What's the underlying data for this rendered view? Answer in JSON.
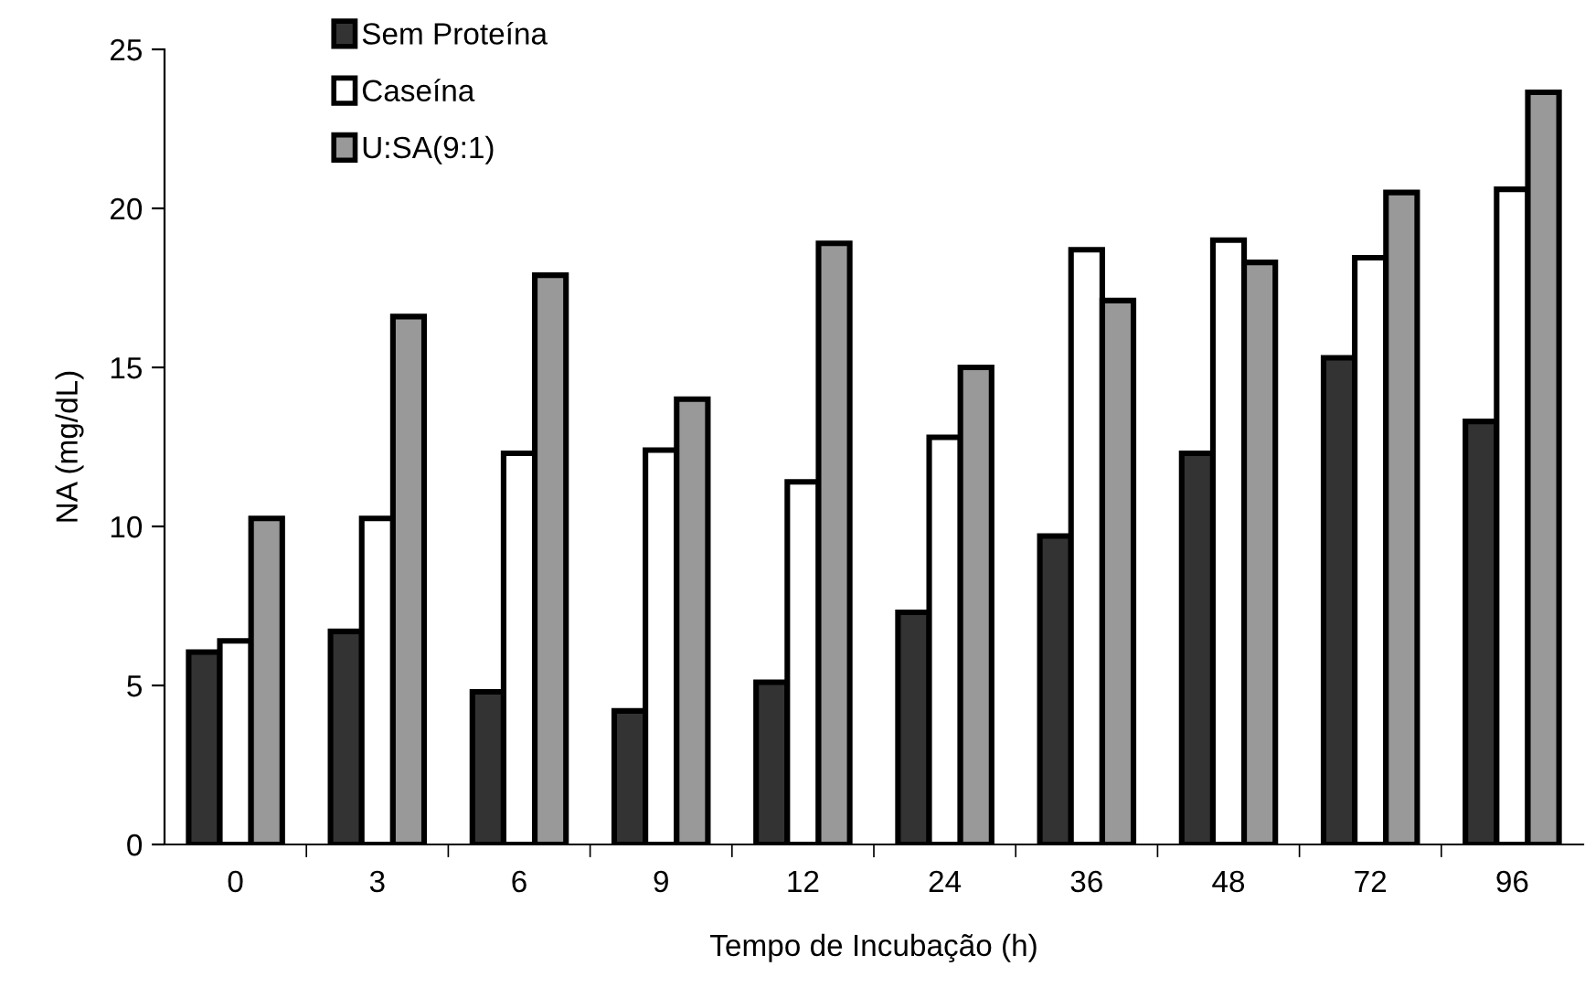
{
  "chart_data": {
    "type": "bar",
    "xlabel": "Tempo de Incubação (h)",
    "ylabel": "NA (mg/dL)",
    "categories": [
      "0",
      "3",
      "6",
      "9",
      "12",
      "24",
      "36",
      "48",
      "72",
      "96"
    ],
    "series": [
      {
        "name": "Sem Proteína",
        "color": "#333333",
        "values": [
          6.05,
          6.7,
          4.8,
          4.2,
          5.1,
          7.3,
          9.7,
          12.3,
          15.3,
          13.3
        ]
      },
      {
        "name": "Caseína",
        "color": "#ffffff",
        "values": [
          6.4,
          10.25,
          12.3,
          12.4,
          11.4,
          12.8,
          18.7,
          19.0,
          18.45,
          20.6
        ]
      },
      {
        "name": "U:SA(9:1)",
        "color": "#999999",
        "values": [
          10.25,
          16.6,
          17.9,
          14.0,
          18.9,
          15.0,
          17.1,
          18.3,
          20.5,
          23.65
        ]
      }
    ],
    "ylim": [
      0,
      25
    ],
    "yticks": [
      0,
      5,
      10,
      15,
      20,
      25
    ],
    "grid": false,
    "legend": "top left"
  }
}
